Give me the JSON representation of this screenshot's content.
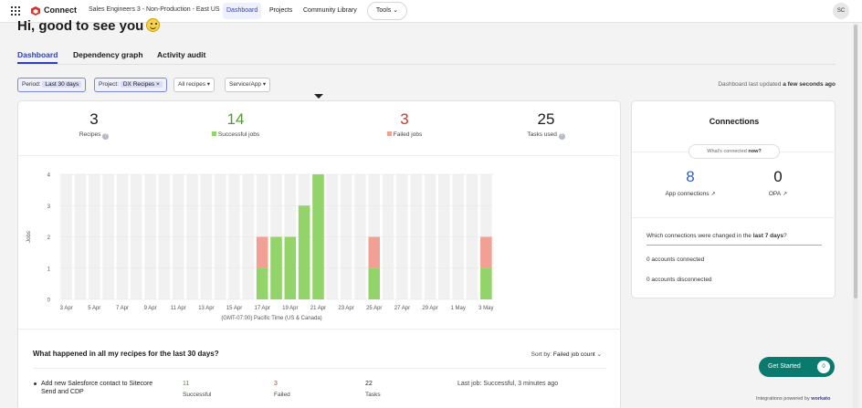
{
  "nav": {
    "brand": "Connect",
    "workspace": "Sales Engineers 3 - Non-Production - East US",
    "links": [
      "Dashboard",
      "Projects",
      "Community Library"
    ],
    "tools": "Tools",
    "tools_caret": "⌄",
    "avatar": "SC"
  },
  "greeting": "Hi, good to see you",
  "tabs": [
    "Dashboard",
    "Dependency graph",
    "Activity audit"
  ],
  "filters": {
    "period_label": "Period:",
    "period_value": "Last 30 days",
    "project_label": "Project:",
    "project_value": "DX Recipes",
    "project_remove": "×",
    "recipes": "All recipes",
    "service": "Service/App",
    "caret": "▾"
  },
  "updated": {
    "prefix": "Dashboard last updated",
    "value": "a few seconds ago"
  },
  "stats": [
    {
      "value": "3",
      "label": "Recipes",
      "color": "#1b1b1b"
    },
    {
      "value": "14",
      "label": "Successful jobs",
      "color": "#4f9a2d"
    },
    {
      "value": "3",
      "label": "Failed jobs",
      "color": "#d6322c"
    },
    {
      "value": "25",
      "label": "Tasks used",
      "color": "#1b1b1b"
    }
  ],
  "help_glyph": "?",
  "chart_data": {
    "type": "bar",
    "stacked": true,
    "ylabel": "Jobs",
    "xlabel": "(GMT-07:00) Pacific Time (US & Canada)",
    "ylim": [
      0,
      4
    ],
    "yticks": [
      0,
      1,
      2,
      3,
      4
    ],
    "grid": true,
    "x_tick_labels": [
      "3 Apr",
      "5 Apr",
      "7 Apr",
      "9 Apr",
      "11 Apr",
      "13 Apr",
      "15 Apr",
      "17 Apr",
      "19 Apr",
      "21 Apr",
      "23 Apr",
      "25 Apr",
      "27 Apr",
      "29 Apr",
      "1 May",
      "3 May"
    ],
    "categories": [
      "3 Apr",
      "4 Apr",
      "5 Apr",
      "6 Apr",
      "7 Apr",
      "8 Apr",
      "9 Apr",
      "10 Apr",
      "11 Apr",
      "12 Apr",
      "13 Apr",
      "14 Apr",
      "15 Apr",
      "16 Apr",
      "17 Apr",
      "18 Apr",
      "19 Apr",
      "20 Apr",
      "21 Apr",
      "22 Apr",
      "23 Apr",
      "24 Apr",
      "25 Apr",
      "26 Apr",
      "27 Apr",
      "28 Apr",
      "29 Apr",
      "30 Apr",
      "1 May",
      "2 May",
      "3 May"
    ],
    "series": [
      {
        "name": "Successful jobs",
        "color": "#93d46a",
        "values": [
          0,
          0,
          0,
          0,
          0,
          0,
          0,
          0,
          0,
          0,
          0,
          0,
          0,
          0,
          1,
          2,
          2,
          3,
          4,
          0,
          0,
          0,
          1,
          0,
          0,
          0,
          0,
          0,
          0,
          0,
          1
        ]
      },
      {
        "name": "Failed jobs",
        "color": "#f2a093",
        "values": [
          0,
          0,
          0,
          0,
          0,
          0,
          0,
          0,
          0,
          0,
          0,
          0,
          0,
          0,
          1,
          0,
          0,
          0,
          0,
          0,
          0,
          0,
          1,
          0,
          0,
          0,
          0,
          0,
          0,
          0,
          1
        ]
      }
    ]
  },
  "activity": {
    "title": "What happened in all my recipes for the last 30 days?",
    "sort_label": "Sort by:",
    "sort_value": "Failed job count",
    "sort_caret": "⌄",
    "recipe": {
      "name": "Add new Salesforce contact to Sitecore Send and CDP",
      "successful": "11",
      "successful_label": "Successful",
      "failed": "3",
      "failed_label": "Failed",
      "tasks": "22",
      "tasks_label": "Tasks",
      "last_job": "Last job: Successful, 3 minutes ago"
    }
  },
  "connections": {
    "title": "Connections",
    "pill_prefix": "What's connected",
    "pill_bold": "now?",
    "app_count": "8",
    "app_label": "App connections",
    "opa_count": "0",
    "opa_label": "OPA",
    "ext_glyph": "↗",
    "which_prefix": "Which connections were changed in the",
    "which_bold": "last 7 days",
    "which_suffix": "?",
    "accounts_connected": "0 accounts connected",
    "accounts_disconnected": "0 accounts disconnected"
  },
  "get_started": {
    "label": "Get Started",
    "count": "0"
  },
  "powered": {
    "prefix": "Integrations powered by",
    "brand": "workato"
  }
}
